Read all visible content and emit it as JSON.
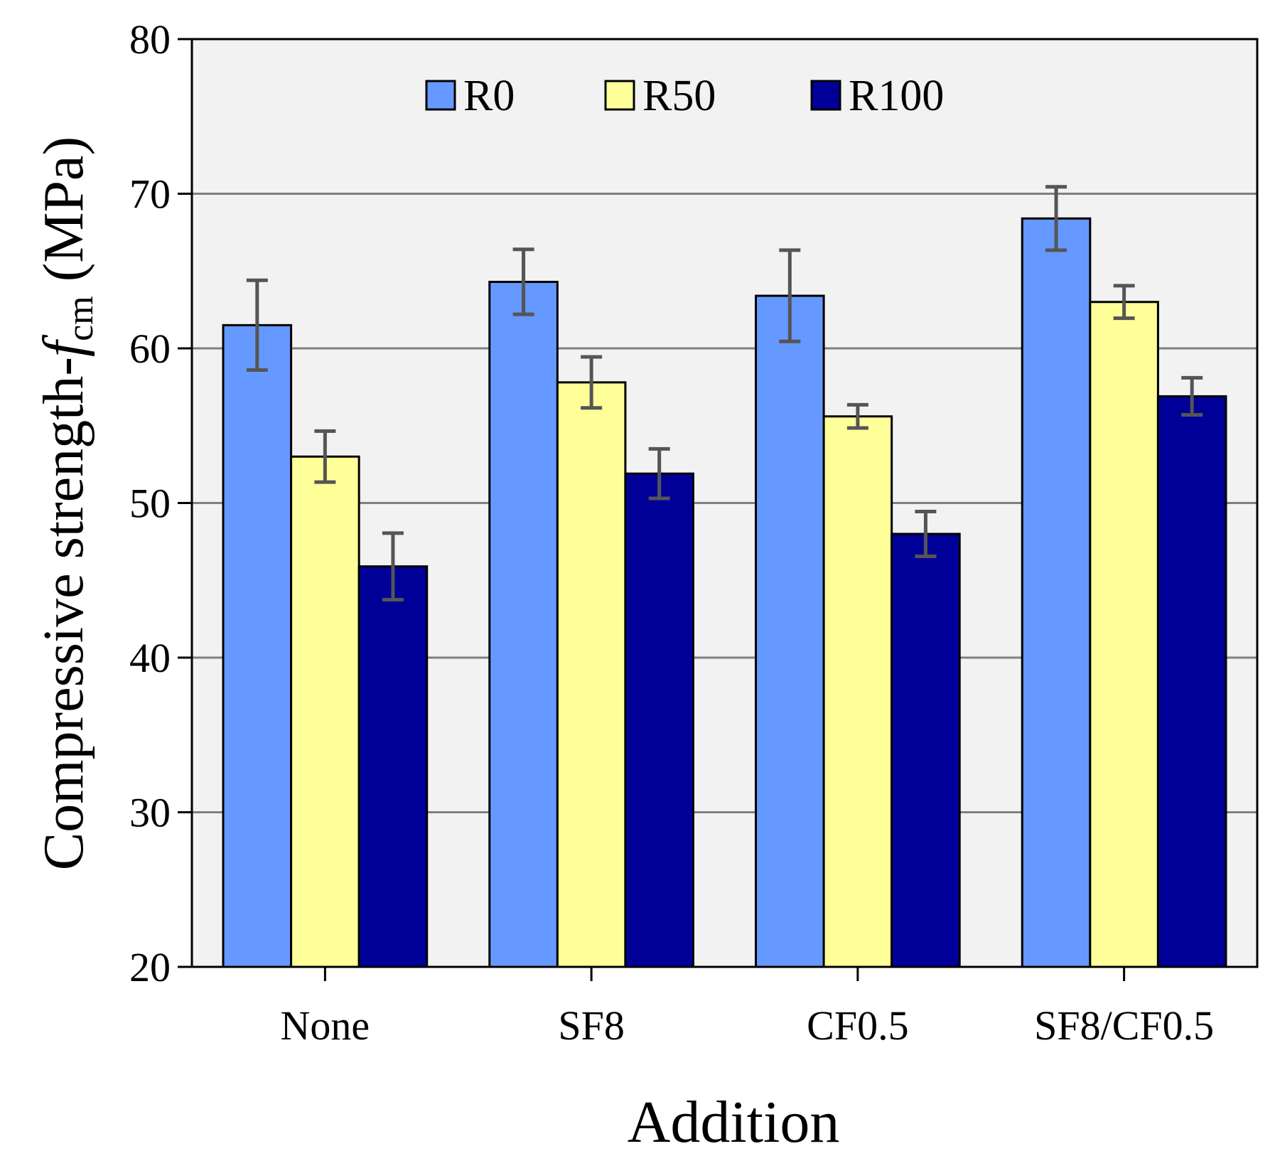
{
  "chart_data": {
    "type": "bar",
    "title": "",
    "xlabel": "Addition",
    "ylabel": {
      "prefix": "Compressive strength-",
      "symbol": "f",
      "subscript": "cm",
      "suffix": " (MPa)"
    },
    "ylim": [
      20,
      80
    ],
    "yticks": [
      20,
      30,
      40,
      50,
      60,
      70,
      80
    ],
    "grid": true,
    "legend_position": "top",
    "categories": [
      "None",
      "SF8",
      "CF0.5",
      "SF8/CF0.5"
    ],
    "series": [
      {
        "name": "R0",
        "color": "#6699FF",
        "values": [
          61.5,
          64.3,
          63.4,
          68.4
        ],
        "errors": [
          2.9,
          2.1,
          2.95,
          2.05
        ]
      },
      {
        "name": "R50",
        "color": "#FFFF99",
        "values": [
          53.0,
          57.8,
          55.6,
          63.0
        ],
        "errors": [
          1.65,
          1.65,
          0.75,
          1.05
        ]
      },
      {
        "name": "R100",
        "color": "#000099",
        "values": [
          45.9,
          51.9,
          48.0,
          56.9
        ],
        "errors": [
          2.15,
          1.6,
          1.45,
          1.2
        ]
      }
    ],
    "colors": {
      "plot_background": "#F2F2F2",
      "gridline": "#808080",
      "error_bar": "#555555"
    }
  }
}
